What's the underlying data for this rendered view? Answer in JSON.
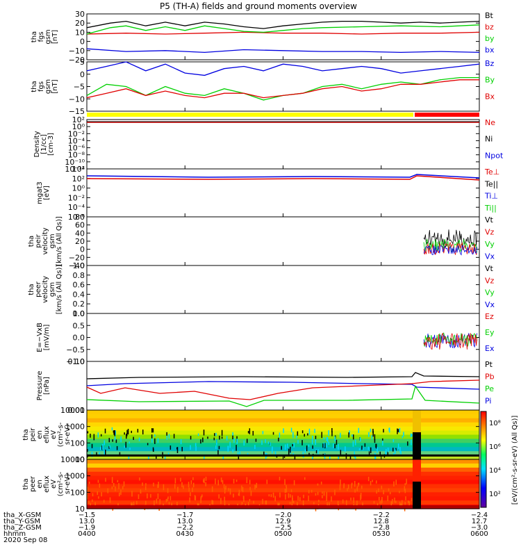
{
  "title": "P5 (TH-A) fields and ground moments overview",
  "colors": {
    "black": "#000000",
    "red": "#e00000",
    "green": "#00d000",
    "blue": "#0000e0",
    "yellow": "#ffff00",
    "bar_red": "#ff0000"
  },
  "chart_data": [
    {
      "id": "fgs_gsm",
      "type": "line",
      "ylabel": [
        "tha",
        "fgs",
        "gsm",
        "[nT]"
      ],
      "ylim": [
        -20,
        30
      ],
      "yticks": [
        "30",
        "20",
        "10",
        "0",
        "−10",
        "−20"
      ],
      "series": [
        {
          "name": "Bt",
          "color": "black",
          "x": [
            0,
            0.06,
            0.1,
            0.15,
            0.2,
            0.25,
            0.3,
            0.35,
            0.4,
            0.45,
            0.5,
            0.55,
            0.6,
            0.65,
            0.7,
            0.75,
            0.8,
            0.85,
            0.9,
            0.95,
            1.0
          ],
          "y": [
            15,
            20,
            22,
            17,
            21,
            17,
            21,
            19,
            16,
            14,
            17,
            19,
            21,
            22,
            22,
            21,
            20,
            21,
            20,
            21,
            22
          ]
        },
        {
          "name": "bz",
          "color": "red",
          "x": [
            0,
            0.1,
            0.2,
            0.3,
            0.4,
            0.5,
            0.6,
            0.7,
            0.8,
            0.9,
            1.0
          ],
          "y": [
            8,
            9,
            8,
            9,
            10,
            9,
            9,
            8,
            9,
            9,
            10
          ]
        },
        {
          "name": "by",
          "color": "green",
          "x": [
            0,
            0.06,
            0.1,
            0.15,
            0.2,
            0.25,
            0.3,
            0.35,
            0.4,
            0.45,
            0.5,
            0.55,
            0.6,
            0.7,
            0.8,
            0.9,
            1.0
          ],
          "y": [
            8,
            15,
            17,
            12,
            16,
            12,
            17,
            14,
            11,
            10,
            12,
            14,
            15,
            16,
            17,
            16,
            18
          ]
        },
        {
          "name": "bx",
          "color": "blue",
          "x": [
            0,
            0.1,
            0.2,
            0.3,
            0.4,
            0.5,
            0.6,
            0.7,
            0.8,
            0.9,
            1.0
          ],
          "y": [
            -8,
            -11,
            -10,
            -12,
            -9,
            -10,
            -11,
            -11,
            -12,
            -11,
            -12
          ]
        }
      ]
    },
    {
      "id": "fgs_gsm2",
      "type": "line",
      "ylabel": [
        "tha",
        "fgs",
        "gsm",
        "[nT]"
      ],
      "ylim": [
        -17,
        5
      ],
      "yticks": [
        "5",
        "0",
        "−5",
        "−10",
        "−15"
      ],
      "series": [
        {
          "name": "Bz",
          "color": "blue",
          "x": [
            0,
            0.05,
            0.1,
            0.15,
            0.2,
            0.25,
            0.3,
            0.35,
            0.4,
            0.45,
            0.5,
            0.55,
            0.6,
            0.65,
            0.7,
            0.75,
            0.8,
            0.85,
            0.9,
            0.95,
            1.0
          ],
          "y": [
            1,
            3,
            5,
            1,
            4,
            0,
            -1,
            2,
            3,
            1,
            4,
            3,
            1,
            2,
            3,
            2,
            0,
            1,
            2,
            3,
            4
          ]
        },
        {
          "name": "By",
          "color": "green",
          "x": [
            0,
            0.05,
            0.1,
            0.15,
            0.2,
            0.25,
            0.3,
            0.35,
            0.4,
            0.45,
            0.5,
            0.55,
            0.6,
            0.65,
            0.7,
            0.75,
            0.8,
            0.85,
            0.9,
            0.95,
            1.0
          ],
          "y": [
            -10,
            -5,
            -6,
            -10,
            -6,
            -9,
            -10,
            -7,
            -9,
            -12,
            -10,
            -9,
            -6,
            -5,
            -7,
            -5,
            -4,
            -5,
            -3,
            -2,
            -2
          ]
        },
        {
          "name": "Bx",
          "color": "red",
          "x": [
            0,
            0.05,
            0.1,
            0.15,
            0.2,
            0.25,
            0.3,
            0.35,
            0.4,
            0.45,
            0.5,
            0.55,
            0.6,
            0.65,
            0.7,
            0.75,
            0.8,
            0.85,
            0.9,
            0.95,
            1.0
          ],
          "y": [
            -11,
            -9,
            -7,
            -10,
            -8,
            -10,
            -11,
            -9,
            -9,
            -11,
            -10,
            -9,
            -7,
            -6,
            -8,
            -7,
            -5,
            -5,
            -4,
            -3,
            -3
          ]
        }
      ]
    },
    {
      "id": "density",
      "type": "line",
      "ylabel": [
        "Density",
        "[1/cc]",
        "[cm-3]"
      ],
      "yticks": [
        "10²",
        "10⁰",
        "10⁻²",
        "10⁻⁴",
        "10⁻⁶",
        "10⁻⁸",
        "10⁻¹⁰",
        "10⁻¹²"
      ],
      "series_names": [
        {
          "name": "Ne",
          "color": "red"
        },
        {
          "name": "Ni",
          "color": "black"
        },
        {
          "name": "Npot",
          "color": "blue"
        }
      ]
    },
    {
      "id": "temp",
      "type": "line",
      "ylabel": [
        "mgat3",
        "[eV]"
      ],
      "yticks": [
        "10⁴",
        "10²",
        "10⁰",
        "10⁻²",
        "10⁻⁴",
        "10⁻⁶"
      ],
      "series_names": [
        {
          "name": "Te⊥",
          "color": "red"
        },
        {
          "name": "Te||",
          "color": "black"
        },
        {
          "name": "Ti⊥",
          "color": "blue"
        },
        {
          "name": "Ti||",
          "color": "green"
        }
      ]
    },
    {
      "id": "peir_velocity",
      "type": "line",
      "ylabel": [
        "tha",
        "peir",
        "velocity",
        "gsm",
        "[km/s (All Qs)]"
      ],
      "ylim": [
        -40,
        80
      ],
      "yticks": [
        "80",
        "60",
        "40",
        "20",
        "0",
        "−20",
        "−40"
      ],
      "series_names": [
        {
          "name": "Vt",
          "color": "black"
        },
        {
          "name": "Vz",
          "color": "red"
        },
        {
          "name": "Vy",
          "color": "green"
        },
        {
          "name": "Vx",
          "color": "blue"
        }
      ]
    },
    {
      "id": "peer_velocity",
      "type": "line",
      "ylabel": [
        "tha",
        "peer",
        "velocity",
        "gsm",
        "[km/s (All Qs)]"
      ],
      "ylim": [
        0,
        1
      ],
      "yticks": [
        "1.0",
        "0.8",
        "0.6",
        "0.4",
        "0.2",
        "0.0"
      ],
      "series_names": [
        {
          "name": "Vt",
          "color": "black"
        },
        {
          "name": "Vz",
          "color": "red"
        },
        {
          "name": "Vy",
          "color": "green"
        },
        {
          "name": "Vx",
          "color": "blue"
        }
      ]
    },
    {
      "id": "efield",
      "type": "line",
      "ylabel": [
        "E=−VxB",
        "[mV/m]"
      ],
      "ylim": [
        -1,
        1
      ],
      "yticks": [
        "1.0",
        "0.5",
        "0.0",
        "−0.5",
        "−1.0"
      ],
      "series_names": [
        {
          "name": "Ez",
          "color": "red"
        },
        {
          "name": "Ey",
          "color": "green"
        },
        {
          "name": "Ex",
          "color": "blue"
        }
      ]
    },
    {
      "id": "pressure",
      "type": "line",
      "ylabel": [
        "Pressure",
        "[nPa]"
      ],
      "yticks": [
        "0.10",
        "0.01"
      ],
      "series_names": [
        {
          "name": "Pt",
          "color": "black"
        },
        {
          "name": "Pb",
          "color": "red"
        },
        {
          "name": "Pe",
          "color": "green"
        },
        {
          "name": "Pi",
          "color": "blue"
        }
      ]
    },
    {
      "id": "peir_spec",
      "type": "heatmap",
      "ylabel": [
        "tha",
        "peir",
        "en",
        "eflux",
        "eV",
        "(cm²-s-",
        "sr-eV)"
      ],
      "yticks": [
        "10000",
        "1000",
        "100",
        "10"
      ]
    },
    {
      "id": "peer_spec",
      "type": "heatmap",
      "ylabel": [
        "tha",
        "peer",
        "en",
        "eflux",
        "eV",
        "(cm²-s-",
        "sr-eV)"
      ],
      "yticks": [
        "10000",
        "1000",
        "100",
        "10"
      ]
    }
  ],
  "colorbar": {
    "ticks": [
      "10⁸",
      "10⁶",
      "10⁴",
      "10²"
    ],
    "label": "[eV/(cm²-s-sr-eV) (All Qs)]"
  },
  "xaxis": {
    "rows": [
      {
        "label": "tha_X-GSM",
        "values": [
          "−1.5",
          "−1.7",
          "−2.0",
          "−2.2",
          "−2.4"
        ]
      },
      {
        "label": "tha_Y-GSM",
        "values": [
          "13.0",
          "13.0",
          "12.9",
          "12.8",
          "12.7"
        ]
      },
      {
        "label": "tha_Z-GSM",
        "values": [
          "−1.9",
          "−2.2",
          "−2.5",
          "−2.8",
          "−3.0"
        ]
      },
      {
        "label": "hhmm",
        "values": [
          "0400",
          "0430",
          "0500",
          "0530",
          "0600"
        ]
      }
    ],
    "date": "2020 Sep 08"
  }
}
